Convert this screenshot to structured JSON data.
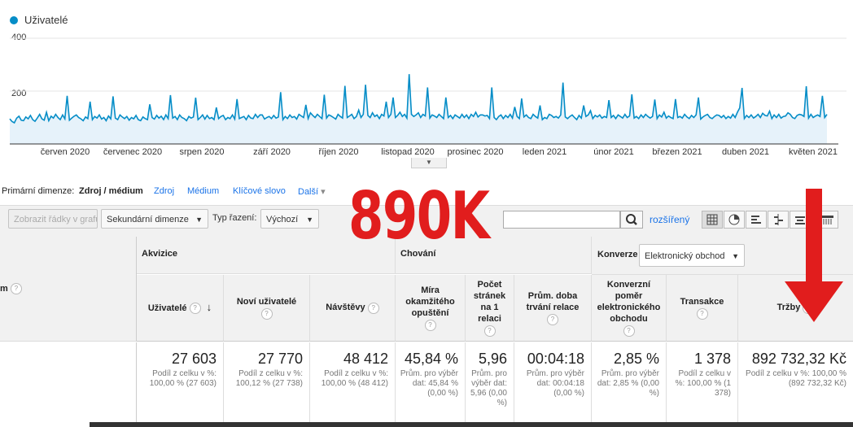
{
  "chart": {
    "legend_label": "Uživatelé",
    "line_color": "#058dc7",
    "yticks": [
      "400",
      "200"
    ],
    "xticks": [
      "červen 2020",
      "červenec 2020",
      "srpen 2020",
      "září 2020",
      "říjen 2020",
      "listopad 2020",
      "prosinec 2020",
      "leden 2021",
      "únor 2021",
      "březen 2021",
      "duben 2021",
      "květen 2021"
    ]
  },
  "chart_data": {
    "type": "area",
    "series": [
      {
        "name": "Uživatelé",
        "values": [
          95,
          85,
          80,
          98,
          105,
          90,
          88,
          102,
          95,
          108,
          92,
          86,
          98,
          112,
          95,
          90,
          120,
          88,
          105,
          98,
          112,
          100,
          92,
          110,
          95,
          182,
          90,
          98,
          105,
          110,
          100,
          95,
          88,
          102,
          96,
          160,
          92,
          104,
          98,
          110,
          94,
          100,
          88,
          106,
          95,
          180,
          98,
          92,
          110,
          102,
          96,
          104,
          90,
          100,
          95,
          108,
          92,
          88,
          102,
          96,
          92,
          150,
          100,
          94,
          108,
          98,
          105,
          92,
          110,
          96,
          185,
          98,
          104,
          92,
          110,
          100,
          96,
          88,
          104,
          98,
          102,
          175,
          92,
          100,
          110,
          94,
          108,
          96,
          100,
          92,
          138,
          96,
          104,
          108,
          92,
          100,
          96,
          110,
          94,
          170,
          96,
          100,
          104,
          92,
          108,
          98,
          96,
          112,
          100,
          110,
          110,
          94,
          100,
          104,
          96,
          108,
          98,
          102,
          196,
          92,
          104,
          96,
          110,
          100,
          104,
          94,
          112,
          106,
          100,
          148,
          96,
          118,
          108,
          100,
          112,
          104,
          96,
          186,
          98,
          110,
          106,
          100,
          94,
          112,
          104,
          98,
          220,
          100,
          106,
          112,
          96,
          104,
          128,
          100,
          112,
          224,
          108,
          100,
          118,
          104,
          110,
          96,
          112,
          106,
          160,
          100,
          112,
          176,
          100,
          108,
          120,
          104,
          112,
          98,
          264,
          112,
          104,
          110,
          118,
          100,
          112,
          106,
          214,
          98,
          110,
          106,
          100,
          112,
          104,
          96,
          176,
          100,
          108,
          96,
          110,
          104,
          98,
          112,
          100,
          110,
          96,
          112,
          104,
          120,
          102,
          110,
          110,
          106,
          108,
          96,
          214,
          100,
          92,
          104,
          110,
          96,
          108,
          100,
          112,
          98,
          140,
          104,
          96,
          172,
          102,
          110,
          100,
          96,
          112,
          104,
          98,
          146,
          92,
          100,
          96,
          112,
          108,
          100,
          104,
          98,
          110,
          232,
          102,
          96,
          104,
          110,
          100,
          92,
          108,
          98,
          146,
          104,
          110,
          126,
          96,
          108,
          102,
          110,
          98,
          104,
          100,
          166,
          100,
          108,
          96,
          110,
          104,
          98,
          112,
          100,
          106,
          188,
          98,
          104,
          96,
          110,
          100,
          112,
          104,
          98,
          104,
          168,
          96,
          110,
          102,
          120,
          98,
          106,
          100,
          96,
          170,
          100,
          104,
          98,
          112,
          102,
          96,
          108,
          100,
          110,
          176,
          94,
          102,
          108,
          112,
          100,
          96,
          104,
          110,
          108,
          100,
          108,
          96,
          104,
          98,
          112,
          100,
          120,
          136,
          212,
          96,
          108,
          100,
          110,
          98,
          104,
          112,
          100,
          116,
          108,
          106,
          124,
          96,
          110,
          100,
          112,
          98,
          104,
          106,
          118,
          112,
          100,
          96,
          108,
          112,
          110,
          104,
          218,
          98,
          112,
          100,
          106,
          110,
          104,
          182,
          100,
          112
        ]
      }
    ],
    "ylim": [
      0,
      400
    ],
    "xticks": [
      "červen 2020",
      "červenec 2020",
      "srpen 2020",
      "září 2020",
      "říjen 2020",
      "listopad 2020",
      "prosinec 2020",
      "leden 2021",
      "únor 2021",
      "březen 2021",
      "duben 2021",
      "květen 2021"
    ]
  },
  "dimensions": {
    "label": "Primární dimenze:",
    "active": "Zdroj / médium",
    "links": [
      "Zdroj",
      "Médium",
      "Klíčové slovo",
      "Další"
    ]
  },
  "toolbar": {
    "show_rows": "Zobrazit řádky v grafu",
    "secondary_dimension": "Sekundární dimenze",
    "sort_label": "Typ řazení:",
    "sort_value": "Výchozí",
    "search_placeholder": "",
    "advanced": "rozšířený"
  },
  "table": {
    "first_col_label": "m",
    "groups": {
      "acquisition": "Akvizice",
      "behavior": "Chování",
      "conversion": "Konverze",
      "conversion_select": "Elektronický obchod"
    },
    "columns": [
      "Uživatelé",
      "Noví uživatelé",
      "Návštěvy",
      "Míra okamžitého opuštění",
      "Počet stránek na 1 relaci",
      "Prům. doba trvání relace",
      "Konverzní poměr elektronického obchodu",
      "Transakce",
      "Tržby"
    ],
    "totals": [
      {
        "value": "27 603",
        "sub": "Podíl z celku v %: 100,00 % (27 603)"
      },
      {
        "value": "27 770",
        "sub": "Podíl z celku v %: 100,12 % (27 738)"
      },
      {
        "value": "48 412",
        "sub": "Podíl z celku v %: 100,00 % (48 412)"
      },
      {
        "value": "45,84 %",
        "sub": "Prům. pro výběr dat: 45,84 % (0,00 %)"
      },
      {
        "value": "5,96",
        "sub": "Prům. pro výběr dat: 5,96 (0,00 %)"
      },
      {
        "value": "00:04:18",
        "sub": "Prům. pro výběr dat: 00:04:18 (0,00 %)"
      },
      {
        "value": "2,85 %",
        "sub": "Prům. pro výběr dat: 2,85 % (0,00 %)"
      },
      {
        "value": "1 378",
        "sub": "Podíl z celku v %: 100,00 % (1 378)"
      },
      {
        "value": "892 732,32 Kč",
        "sub": "Podíl z celku v %: 100,00 % (892 732,32 Kč)"
      }
    ]
  },
  "overlay": {
    "big_text": "890K",
    "color": "#e11d1d"
  }
}
